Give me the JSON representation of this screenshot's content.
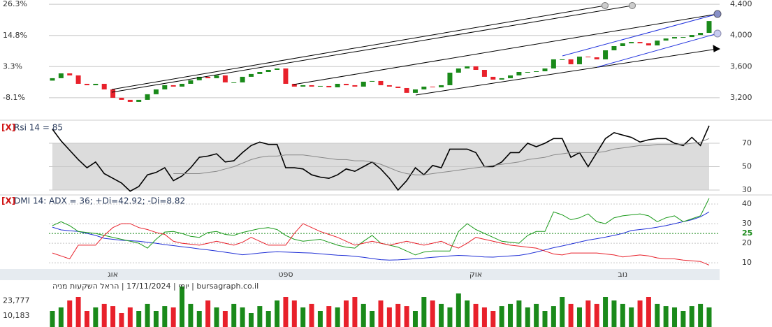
{
  "chart_data": [
    {
      "type": "candlestick",
      "categories": [
        null,
        null,
        null,
        null,
        null,
        null,
        null,
        "אוג",
        null,
        null,
        null,
        null,
        null,
        null,
        null,
        null,
        null,
        null,
        null,
        null,
        null,
        null,
        null,
        null,
        null,
        null,
        null,
        "ספט",
        null,
        null,
        null,
        null,
        null,
        null,
        null,
        null,
        null,
        null,
        null,
        null,
        null,
        null,
        null,
        null,
        null,
        null,
        null,
        null,
        null,
        "אוק",
        null,
        null,
        null,
        null,
        null,
        null,
        null,
        null,
        null,
        null,
        null,
        null,
        null,
        null,
        null,
        null,
        "נוב",
        null,
        null,
        null,
        null,
        null,
        null,
        null,
        null,
        null,
        null
      ],
      "open": [
        3420,
        3451,
        3513,
        3487,
        3379,
        3361,
        3379,
        3307,
        3200,
        3173,
        3146,
        3173,
        3245,
        3307,
        3361,
        3343,
        3379,
        3424,
        3469,
        3451,
        3487,
        3397,
        3397,
        3469,
        3505,
        3531,
        3558,
        3576,
        3379,
        3343,
        3361,
        3343,
        3352,
        3334,
        3379,
        3361,
        3343,
        3406,
        3415,
        3361,
        3343,
        3325,
        3263,
        3307,
        3343,
        3334,
        3361,
        3522,
        3576,
        3603,
        3558,
        3469,
        3433,
        3451,
        3487,
        3531,
        3531,
        3540,
        3576,
        3693,
        3693,
        3630,
        3728,
        3719,
        3693,
        3809,
        3863,
        3899,
        3916,
        3899,
        3872,
        3934,
        3961,
        3979,
        3979,
        4006,
        4033
      ],
      "close": [
        3451,
        3513,
        3487,
        3379,
        3361,
        3379,
        3307,
        3200,
        3173,
        3146,
        3173,
        3245,
        3307,
        3361,
        3343,
        3379,
        3424,
        3469,
        3451,
        3487,
        3397,
        3397,
        3469,
        3505,
        3531,
        3558,
        3576,
        3379,
        3343,
        3361,
        3343,
        3352,
        3334,
        3379,
        3361,
        3343,
        3406,
        3415,
        3361,
        3343,
        3325,
        3263,
        3307,
        3343,
        3334,
        3361,
        3522,
        3576,
        3603,
        3558,
        3469,
        3433,
        3451,
        3487,
        3531,
        3531,
        3540,
        3576,
        3693,
        3693,
        3630,
        3728,
        3719,
        3693,
        3809,
        3863,
        3899,
        3916,
        3899,
        3872,
        3934,
        3961,
        3979,
        3979,
        4006,
        4033,
        4185
      ],
      "up_color": "#1a8a1a",
      "down_color": "#e8212b",
      "ylim": [
        2930,
        4455
      ],
      "yticks": [
        {
          "value": 3200,
          "label": "3,200"
        },
        {
          "value": 3600,
          "label": "3,600"
        },
        {
          "value": 4000,
          "label": "4,000"
        },
        {
          "value": 4400,
          "label": "4,400"
        }
      ],
      "y2lim": [
        -15.8,
        27.9
      ],
      "y2ticks": [
        {
          "value": -8.1,
          "label": "-8.1%"
        },
        {
          "value": 3.3,
          "label": "3.3%"
        },
        {
          "value": 14.8,
          "label": "14.8%"
        },
        {
          "value": 26.3,
          "label": "26.3%"
        }
      ],
      "grid": true
    },
    {
      "type": "line",
      "close_button": "[X]",
      "title": "Rsi 14 = 85",
      "series": [
        {
          "color": "#000000",
          "values": [
            82,
            72,
            64,
            56,
            49,
            54,
            44,
            40,
            36,
            29,
            33,
            43,
            45,
            49,
            38,
            42,
            49,
            58,
            59,
            61,
            54,
            55,
            62,
            68,
            71,
            69,
            69,
            49,
            49,
            48,
            43,
            41,
            40,
            43,
            48,
            46,
            50,
            54,
            48,
            40,
            30,
            38,
            49,
            43,
            51,
            49,
            65,
            65,
            65,
            62,
            50,
            50,
            54,
            62,
            62,
            70,
            67,
            70,
            74,
            74,
            58,
            62,
            50,
            62,
            74,
            79,
            77,
            75,
            71,
            73,
            74,
            74,
            70,
            68,
            75,
            68,
            85
          ]
        },
        {
          "color": "#888888",
          "values": [
            null,
            null,
            null,
            null,
            null,
            null,
            null,
            null,
            null,
            null,
            null,
            null,
            null,
            null,
            44,
            44,
            44,
            44,
            45,
            46,
            48,
            50,
            53,
            56,
            58,
            59,
            59,
            60,
            60,
            60,
            59,
            58,
            57,
            56,
            56,
            55,
            55,
            54,
            52,
            49,
            46,
            44,
            43,
            43,
            44,
            45,
            46,
            47,
            48,
            49,
            50,
            51,
            52,
            53,
            54,
            56,
            57,
            58,
            60,
            61,
            62,
            62,
            62,
            62,
            63,
            65,
            66,
            67,
            68,
            68,
            69,
            69,
            69,
            69,
            70,
            71,
            74
          ]
        }
      ],
      "ylim": [
        26.4,
        87.9
      ],
      "yticks": [
        30,
        50,
        70
      ],
      "band": [
        30,
        70
      ],
      "band_color": "#dcdcdc"
    },
    {
      "type": "line",
      "close_button": "[X]",
      "title": "DMI 14: ADX = 36; +Di=42.92; -Di=8.82",
      "series": [
        {
          "color": "#1f2fd6",
          "values": [
            28.2,
            26.8,
            26.4,
            26,
            25,
            24,
            22.5,
            22,
            21.5,
            21.3,
            21,
            20.5,
            20,
            19.3,
            18.8,
            18.2,
            17.7,
            17.1,
            16.6,
            16,
            15.4,
            14.8,
            14.1,
            14.5,
            15,
            15.4,
            15.6,
            15.5,
            15.3,
            15.1,
            15,
            14.6,
            14.2,
            13.9,
            13.7,
            13.3,
            12.8,
            12.2,
            11.6,
            11.4,
            11.5,
            11.8,
            12.1,
            12.4,
            12.8,
            13.1,
            13.5,
            13.8,
            13.6,
            13.3,
            13,
            12.9,
            13.2,
            13.5,
            13.8,
            14.5,
            15.5,
            16.6,
            17.7,
            18.6,
            19.6,
            20.6,
            21.6,
            22.3,
            23.1,
            24,
            25,
            26.5,
            27,
            27.5,
            28.2,
            29,
            30,
            31,
            32,
            33.5,
            36
          ]
        },
        {
          "color": "#1a9a1a",
          "values": [
            29,
            31,
            29,
            26,
            25.5,
            25,
            24,
            23,
            22,
            21,
            20,
            17.5,
            22,
            25.7,
            26,
            25,
            23.5,
            23,
            25.5,
            26,
            24.5,
            24,
            25.5,
            26.5,
            27.5,
            28,
            27,
            24,
            22,
            21,
            21.5,
            22,
            20.5,
            19,
            18,
            17.5,
            21,
            24,
            20,
            19,
            18,
            16,
            14,
            15.5,
            16,
            16,
            16,
            26,
            30,
            27,
            25,
            23,
            21,
            20.5,
            20,
            24,
            26,
            26,
            36,
            34.5,
            32,
            33,
            35,
            31,
            30,
            33,
            34,
            34.5,
            35,
            34,
            31,
            33,
            34,
            31,
            32.5,
            34,
            42.92
          ]
        },
        {
          "color": "#e8212b",
          "values": [
            15,
            13.5,
            12,
            19,
            19,
            19,
            24,
            28,
            30,
            30,
            28,
            27,
            25.5,
            24.5,
            21,
            20,
            19.5,
            19,
            20,
            21,
            20,
            19,
            20.5,
            23,
            21,
            19,
            19,
            19,
            25,
            30,
            28,
            26,
            24.5,
            23,
            21,
            19,
            20,
            21,
            20,
            19,
            20,
            21,
            20,
            19,
            20,
            21,
            19,
            17.5,
            20,
            23,
            22,
            21,
            20,
            19,
            18.5,
            18,
            17.5,
            16,
            14.5,
            14,
            15,
            15,
            15,
            15,
            14.5,
            14,
            13,
            13.5,
            14,
            13.5,
            12.5,
            12,
            12,
            11.4,
            11,
            10.7,
            8.82
          ]
        }
      ],
      "ylim": [
        7.9,
        44.3
      ],
      "yticks": [
        10,
        20,
        25,
        30,
        40
      ],
      "highlight_tick": 25,
      "highlight_color": "#1a8a1a"
    },
    {
      "type": "bar",
      "footer": "יומי | 17/11/2024 | הראל השקעות מניה | bursagraph.co.il",
      "values": [
        14600,
        17800,
        24100,
        27300,
        14600,
        17800,
        21000,
        19000,
        12700,
        17800,
        14600,
        21000,
        14600,
        19000,
        17800,
        36800,
        21000,
        14600,
        24100,
        17800,
        14600,
        21000,
        17800,
        12700,
        19000,
        14600,
        24100,
        27300,
        24100,
        17800,
        21000,
        14600,
        19000,
        17800,
        24100,
        27300,
        21000,
        14600,
        24100,
        17800,
        21000,
        19000,
        14600,
        27300,
        24100,
        21000,
        17800,
        30500,
        24100,
        21000,
        17800,
        14600,
        19000,
        21000,
        24100,
        17800,
        21000,
        14600,
        19000,
        27300,
        21000,
        17800,
        24100,
        21000,
        27300,
        24100,
        21000,
        17800,
        24100,
        27300,
        21000,
        19000,
        17800,
        14600,
        19000,
        21000,
        17800
      ],
      "ylim": [
        0,
        40000
      ],
      "yticks": [
        {
          "value": 10183,
          "label": "10,183"
        },
        {
          "value": 23777,
          "label": "23,777"
        }
      ]
    }
  ]
}
